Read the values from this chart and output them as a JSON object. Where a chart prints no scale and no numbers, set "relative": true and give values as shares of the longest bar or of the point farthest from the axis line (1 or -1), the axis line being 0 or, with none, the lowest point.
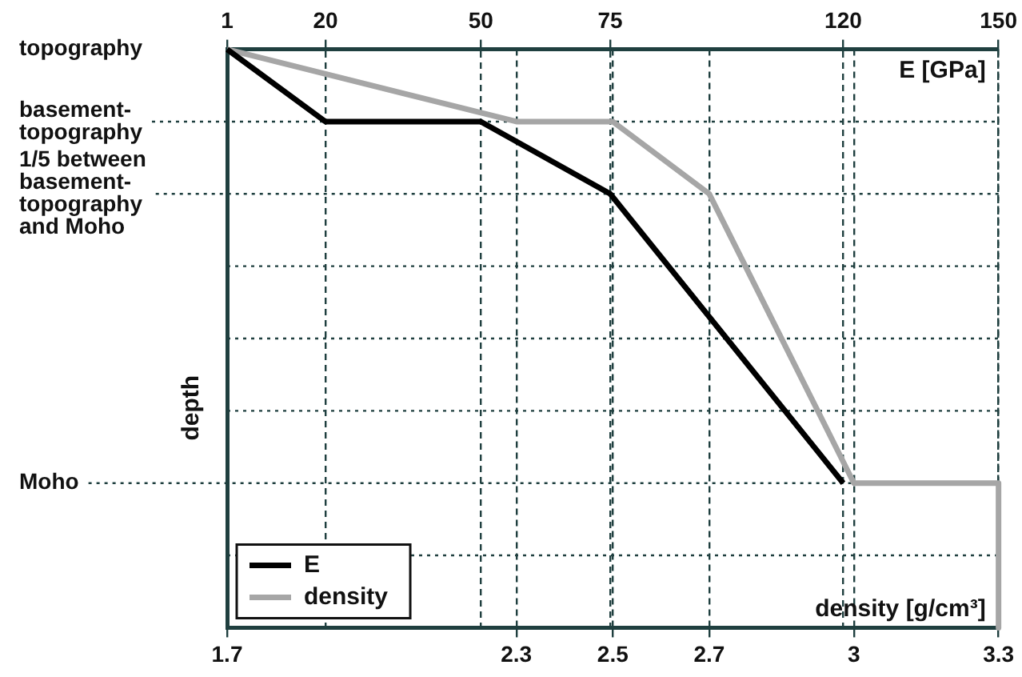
{
  "chart_data": {
    "type": "line",
    "xlabel": "density [g/cm³]",
    "x2label": "E [GPa]",
    "ylabel": "depth",
    "relative": true,
    "xlim": [
      1.7,
      3.3
    ],
    "xticks": [
      1.7,
      2.3,
      2.5,
      2.7,
      3,
      3.3
    ],
    "x2lim": [
      1,
      150
    ],
    "x2ticks": [
      1,
      20,
      50,
      75,
      120,
      150
    ],
    "grid": "x",
    "legend": "bottom left",
    "marker": "none",
    "line_style": "solid",
    "annotations": [
      "topography"
    ],
    "ref_lines": [
      {
        "axis": "y",
        "value": -0.125,
        "label": "basement-topography",
        "line_style": "dotted"
      },
      {
        "axis": "y",
        "value": -0.25,
        "label": "1/5 between basement-topography and Moho",
        "line_style": "dotted"
      },
      {
        "axis": "y",
        "value": -0.375,
        "label": null,
        "line_style": "dotted"
      },
      {
        "axis": "y",
        "value": -0.5,
        "label": null,
        "line_style": "dotted"
      },
      {
        "axis": "y",
        "value": -0.625,
        "label": null,
        "line_style": "dotted"
      },
      {
        "axis": "y",
        "value": -0.75,
        "label": "Moho",
        "line_style": "dotted"
      },
      {
        "axis": "y",
        "value": -0.875,
        "label": null,
        "line_style": "dotted"
      }
    ],
    "series": [
      {
        "name": "E",
        "color": "#000000",
        "axis": "x2",
        "x": [
          1,
          20,
          50,
          75,
          120
        ],
        "values": [
          0,
          -0.125,
          -0.125,
          -0.25,
          -0.75
        ]
      },
      {
        "name": "density",
        "color": "#a6a6a6",
        "x": [
          1.7,
          2.3,
          2.5,
          2.7,
          3,
          3.3,
          3.3
        ],
        "values": [
          0,
          -0.125,
          -0.125,
          -0.25,
          -0.75,
          -0.75,
          -1
        ]
      }
    ]
  }
}
